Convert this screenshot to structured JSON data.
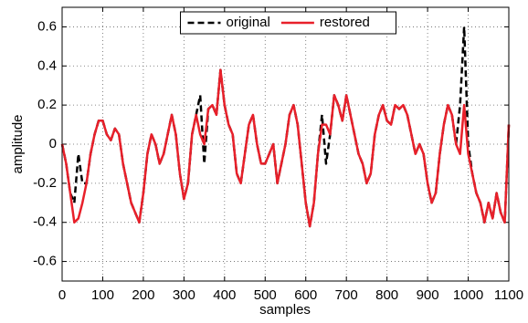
{
  "chart_data": {
    "type": "line",
    "xlabel": "samples",
    "ylabel": "amplitude",
    "x": [
      0,
      10,
      20,
      30,
      40,
      50,
      60,
      70,
      80,
      90,
      100,
      110,
      120,
      130,
      140,
      150,
      160,
      170,
      180,
      190,
      200,
      210,
      220,
      230,
      240,
      250,
      260,
      270,
      280,
      290,
      300,
      310,
      320,
      330,
      340,
      350,
      360,
      370,
      380,
      390,
      400,
      410,
      420,
      430,
      440,
      450,
      460,
      470,
      480,
      490,
      500,
      510,
      520,
      530,
      540,
      550,
      560,
      570,
      580,
      590,
      600,
      610,
      620,
      630,
      640,
      650,
      660,
      670,
      680,
      690,
      700,
      710,
      720,
      730,
      740,
      750,
      760,
      770,
      780,
      790,
      800,
      810,
      820,
      830,
      840,
      850,
      860,
      870,
      880,
      890,
      900,
      910,
      920,
      930,
      940,
      950,
      960,
      970,
      980,
      990,
      1000,
      1010,
      1020,
      1030,
      1040,
      1050,
      1060,
      1070,
      1080,
      1090,
      1100
    ],
    "series": [
      {
        "name": "original",
        "color": "#000000",
        "dashed": true,
        "values": [
          0,
          -0.1,
          -0.25,
          -0.3,
          -0.05,
          -0.2,
          -0.2,
          -0.05,
          0.05,
          0.12,
          0.12,
          0.05,
          0.02,
          0.08,
          0.05,
          -0.1,
          -0.2,
          -0.3,
          -0.35,
          -0.4,
          -0.25,
          -0.05,
          0.05,
          0,
          -0.1,
          -0.05,
          0.05,
          0.15,
          0.05,
          -0.15,
          -0.28,
          -0.2,
          0.05,
          0.15,
          0.25,
          -0.1,
          0.18,
          0.2,
          0.15,
          0.38,
          0.2,
          0.1,
          0.05,
          -0.15,
          -0.2,
          -0.05,
          0.1,
          0.15,
          0,
          -0.1,
          -0.1,
          -0.05,
          0,
          -0.2,
          -0.1,
          0,
          0.15,
          0.2,
          0.1,
          -0.1,
          -0.3,
          -0.42,
          -0.3,
          -0.05,
          0.15,
          -0.1,
          0.05,
          0.25,
          0.2,
          0.12,
          0.25,
          0.15,
          0.05,
          -0.05,
          -0.1,
          -0.2,
          -0.15,
          0.05,
          0.15,
          0.2,
          0.12,
          0.1,
          0.2,
          0.18,
          0.2,
          0.15,
          0.05,
          -0.05,
          0,
          -0.05,
          -0.2,
          -0.3,
          -0.25,
          -0.05,
          0.1,
          0.2,
          0.15,
          0,
          0.2,
          0.6,
          0,
          -0.15,
          -0.25,
          -0.3,
          -0.4,
          -0.3,
          -0.38,
          -0.25,
          -0.35,
          -0.4,
          0.1
        ]
      },
      {
        "name": "restored",
        "color": "#e8202a",
        "dashed": false,
        "values": [
          0,
          -0.1,
          -0.25,
          -0.4,
          -0.38,
          -0.3,
          -0.2,
          -0.05,
          0.05,
          0.12,
          0.12,
          0.05,
          0.02,
          0.08,
          0.05,
          -0.1,
          -0.2,
          -0.3,
          -0.35,
          -0.4,
          -0.25,
          -0.05,
          0.05,
          0,
          -0.1,
          -0.05,
          0.05,
          0.15,
          0.05,
          -0.15,
          -0.28,
          -0.2,
          0.05,
          0.15,
          0.05,
          0,
          0.18,
          0.2,
          0.15,
          0.38,
          0.2,
          0.1,
          0.05,
          -0.15,
          -0.2,
          -0.05,
          0.1,
          0.15,
          0,
          -0.1,
          -0.1,
          -0.05,
          0,
          -0.2,
          -0.1,
          0,
          0.15,
          0.2,
          0.1,
          -0.1,
          -0.3,
          -0.42,
          -0.3,
          -0.05,
          0.1,
          0.1,
          0.05,
          0.25,
          0.2,
          0.12,
          0.25,
          0.15,
          0.05,
          -0.05,
          -0.1,
          -0.2,
          -0.15,
          0.05,
          0.15,
          0.2,
          0.12,
          0.1,
          0.2,
          0.18,
          0.2,
          0.15,
          0.05,
          -0.05,
          0,
          -0.05,
          -0.2,
          -0.3,
          -0.25,
          -0.05,
          0.1,
          0.2,
          0.15,
          0,
          -0.05,
          0.2,
          -0.05,
          -0.15,
          -0.25,
          -0.3,
          -0.4,
          -0.3,
          -0.38,
          -0.25,
          -0.35,
          -0.4,
          0.1
        ]
      }
    ],
    "xlim": [
      0,
      1100
    ],
    "xticks": [
      0,
      100,
      200,
      300,
      400,
      500,
      600,
      700,
      800,
      900,
      1000,
      1100
    ],
    "ylim": [
      -0.7,
      0.7
    ],
    "yticks": [
      -0.6,
      -0.4,
      -0.2,
      0,
      0.2,
      0.4,
      0.6
    ],
    "grid": true,
    "legend": "upper center"
  }
}
